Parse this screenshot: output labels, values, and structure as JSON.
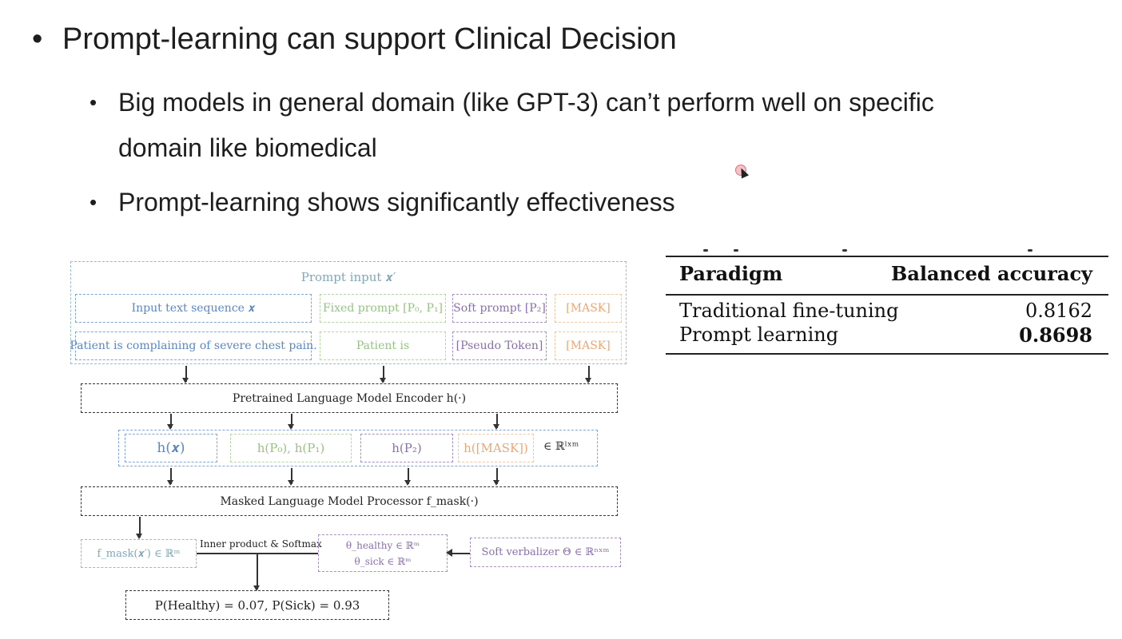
{
  "slide": {
    "bullet1": "Prompt-learning can support Clinical Decision",
    "bullet2_line1": "Big models in general domain (like GPT-3) can’t perform well on specific",
    "bullet2_line2": "domain like biomedical",
    "bullet3": "Prompt-learning shows significantly effectiveness",
    "bullet_glyph": "•"
  },
  "table": {
    "headers": [
      "Paradigm",
      "Balanced accuracy"
    ],
    "rows": [
      {
        "paradigm": "Traditional fine-tuning",
        "accuracy": "0.8162"
      },
      {
        "paradigm": "Prompt learning",
        "accuracy": "0.8698"
      }
    ]
  },
  "diagram": {
    "prompt_input": "Prompt input 𝒙′",
    "input_text_sequence": "Input text sequence 𝒙",
    "fixed_prompt": "Fixed prompt [P₀, P₁]",
    "soft_prompt": "Soft prompt [P₂]",
    "mask": "[MASK]",
    "example_text": "Patient is complaining of severe chest pain.",
    "example_fixed": "Patient is",
    "example_pseudo": "[Pseudo Token]",
    "example_mask": "[MASK]",
    "encoder": "Pretrained Language Model Encoder h(·)",
    "hx": "h(𝒙)",
    "hp01": "h(P₀), h(P₁)",
    "hp2": "h(P₂)",
    "hmask": "h([MASK])",
    "dim": "∈ ℝˡˣᵐ",
    "processor": "Masked Language Model Processor f_mask(·)",
    "fmask": "f_mask(𝒙′) ∈ ℝᵐ",
    "inner_product": "Inner product & Softmax",
    "theta_healthy": "θ_healthy ∈ ℝᵐ",
    "theta_sick": "θ_sick ∈ ℝᵐ",
    "verbalizer": "Soft verbalizer Θ ∈ ℝⁿˣᵐ",
    "result": "P(Healthy) = 0.07,  P(Sick) = 0.93"
  }
}
